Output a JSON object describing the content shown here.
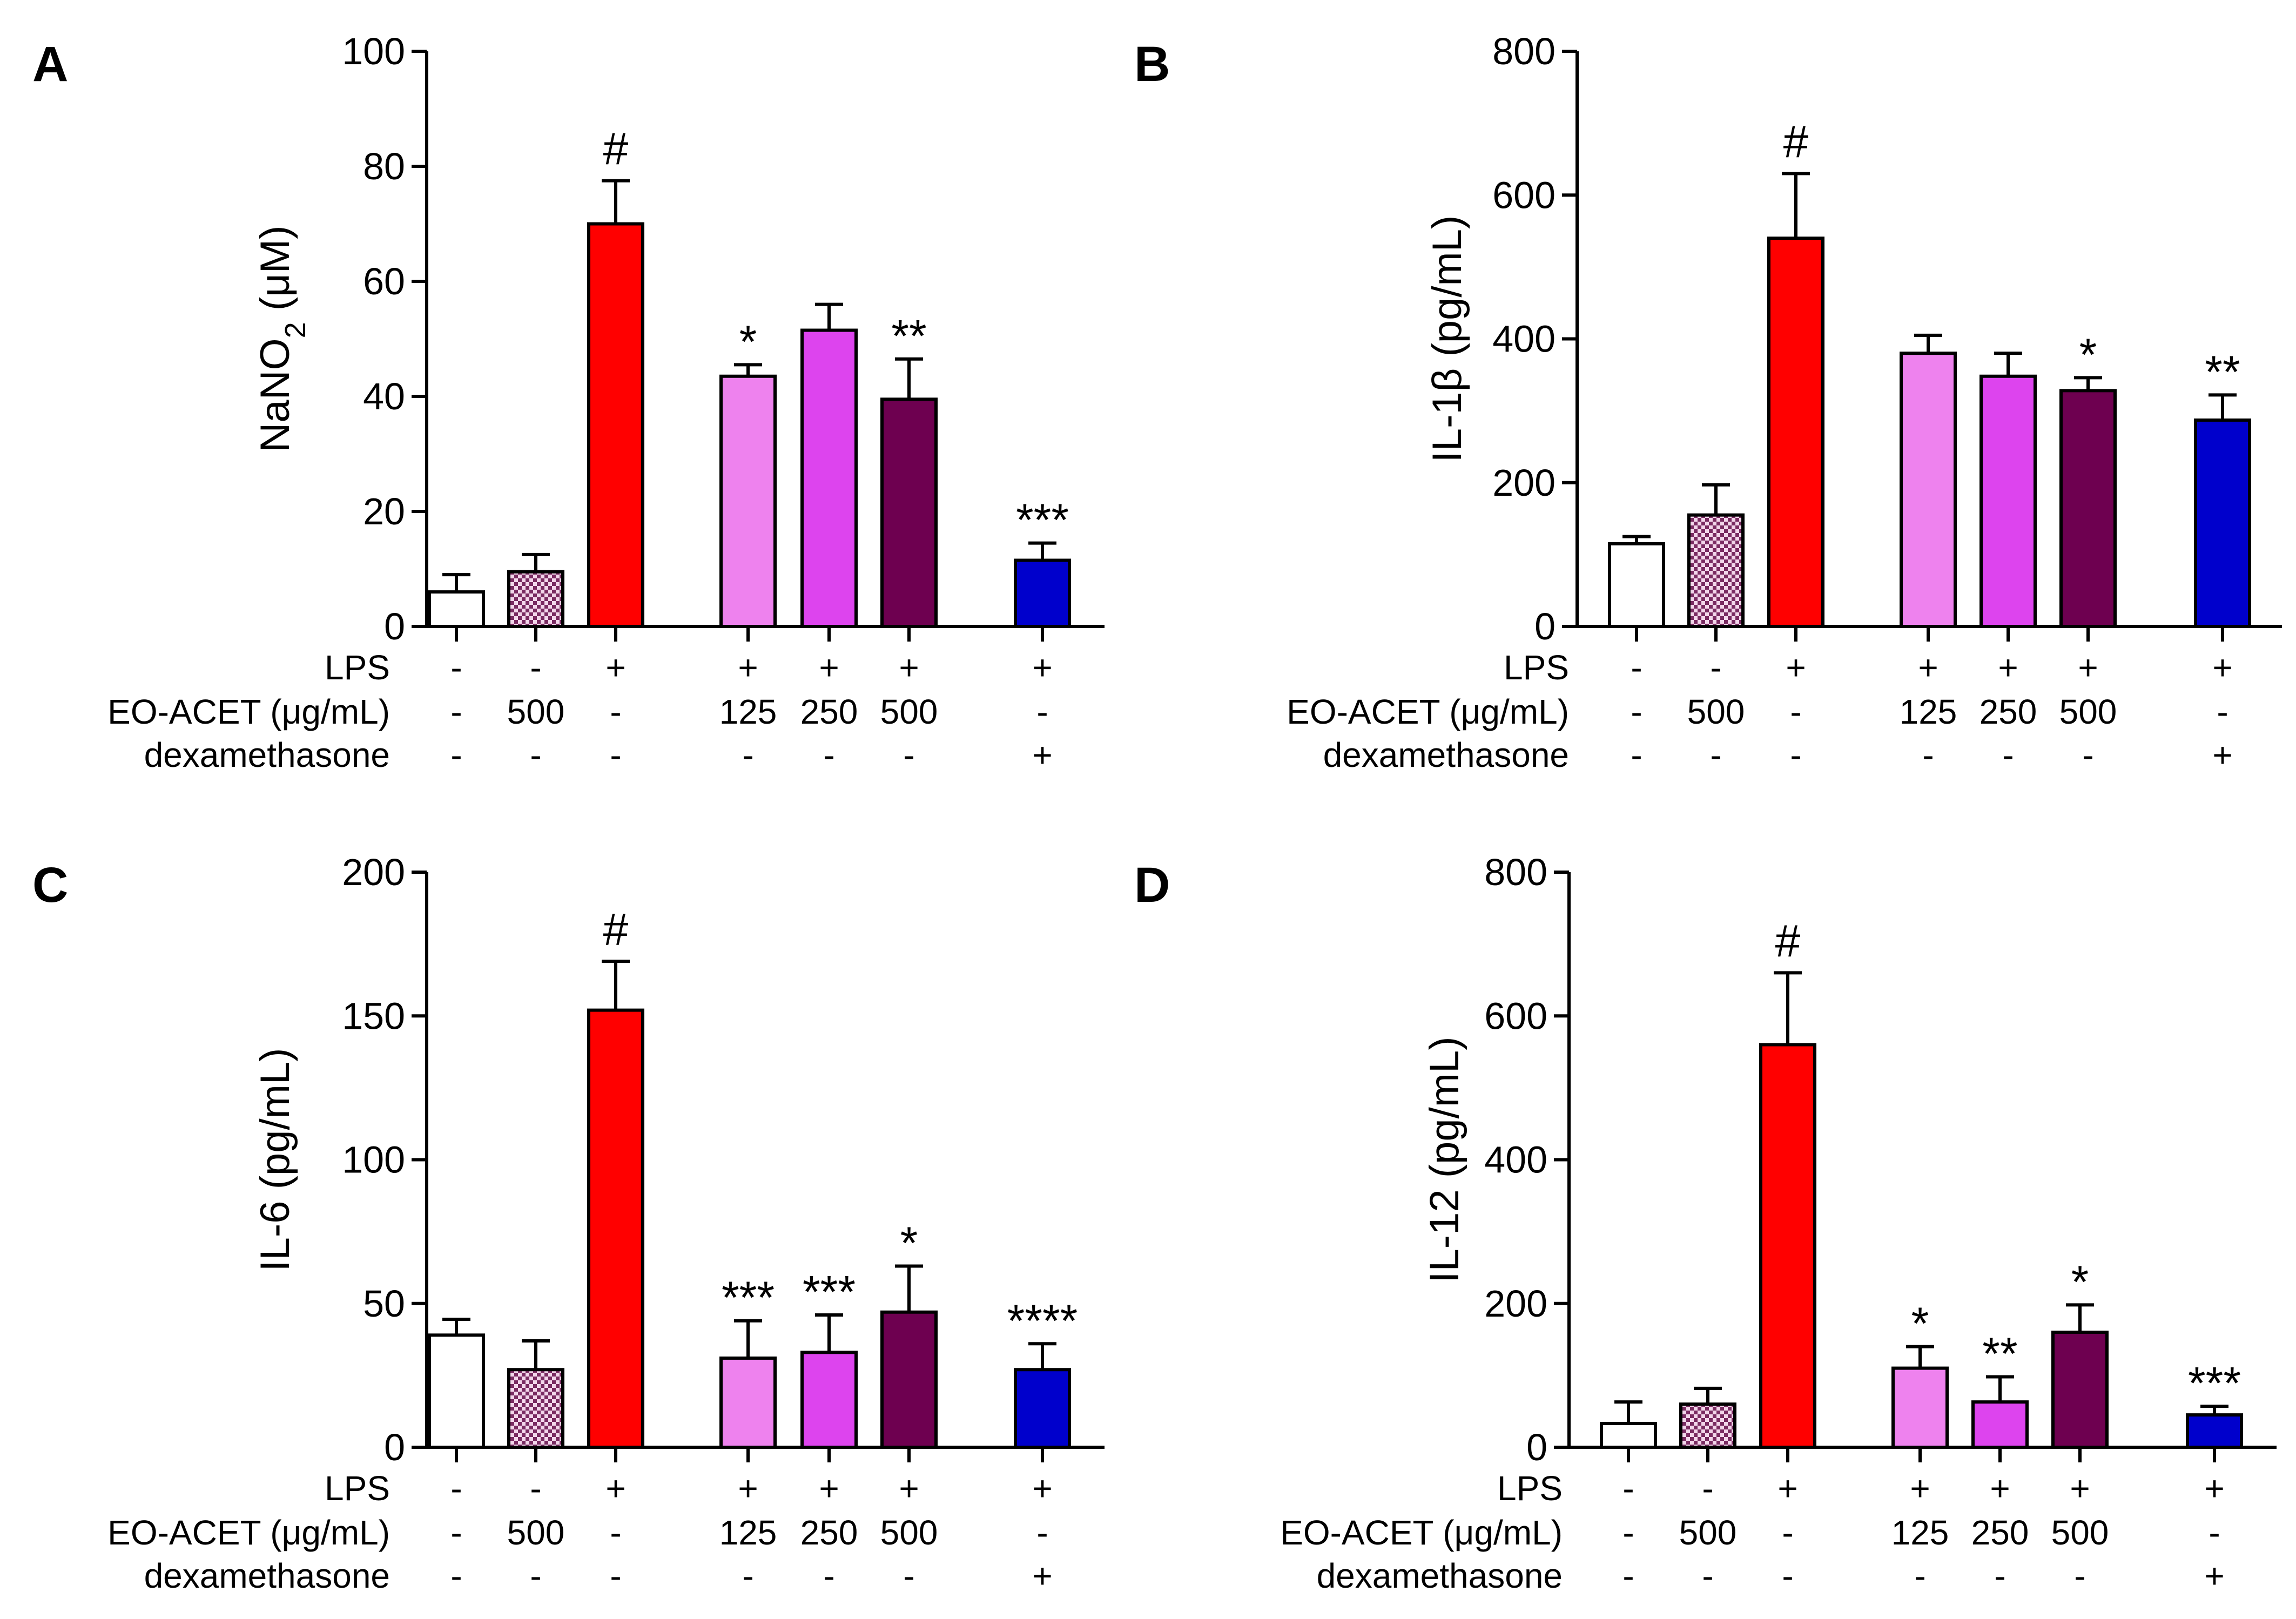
{
  "figure": {
    "panels": [
      {
        "letter": "A",
        "ylabel_main": "NaNO",
        "ylabel_sub": "2",
        "ylabel_tail": " (μM)"
      },
      {
        "letter": "B",
        "ylabel_main": "IL-1β (pg/mL)",
        "ylabel_sub": "",
        "ylabel_tail": ""
      },
      {
        "letter": "C",
        "ylabel_main": "IL-6 (pg/mL)",
        "ylabel_sub": "",
        "ylabel_tail": ""
      },
      {
        "letter": "D",
        "ylabel_main": "IL-12 (pg/mL)",
        "ylabel_sub": "",
        "ylabel_tail": ""
      }
    ],
    "conditions": {
      "row_labels": [
        "LPS",
        "EO-ACET (μg/mL)",
        "dexamethasone"
      ],
      "rows": [
        [
          "-",
          "-",
          "+",
          "+",
          "+",
          "+",
          "+"
        ],
        [
          "-",
          "500",
          "-",
          "125",
          "250",
          "500",
          "-"
        ],
        [
          "-",
          "-",
          "-",
          "-",
          "-",
          "-",
          "+"
        ]
      ]
    }
  },
  "chart_data": [
    {
      "type": "bar",
      "title": "A",
      "ylabel": "NaNO2 (μM)",
      "ylim": [
        0,
        100
      ],
      "yticks": [
        0,
        20,
        40,
        60,
        80,
        100
      ],
      "values": [
        6,
        9.5,
        70,
        43.5,
        51.5,
        39.5,
        11.5
      ],
      "errors": [
        3,
        3,
        7.5,
        2,
        4.5,
        7,
        3
      ],
      "significance": [
        "",
        "",
        "#",
        "*",
        "",
        "**",
        "***"
      ],
      "bar_colors": [
        "#ffffff",
        "pattern",
        "#ff0000",
        "#ee82ee",
        "#dd44ee",
        "#6e0050",
        "#0000cc"
      ]
    },
    {
      "type": "bar",
      "title": "B",
      "ylabel": "IL-1β (pg/mL)",
      "ylim": [
        0,
        800
      ],
      "yticks": [
        0,
        200,
        400,
        600,
        800
      ],
      "values": [
        115,
        155,
        540,
        380,
        348,
        328,
        287
      ],
      "errors": [
        10,
        42,
        90,
        25,
        32,
        18,
        35
      ],
      "significance": [
        "",
        "",
        "#",
        "",
        "",
        "*",
        "**"
      ],
      "bar_colors": [
        "#ffffff",
        "pattern",
        "#ff0000",
        "#ee82ee",
        "#dd44ee",
        "#6e0050",
        "#0000cc"
      ]
    },
    {
      "type": "bar",
      "title": "C",
      "ylabel": "IL-6 (pg/mL)",
      "ylim": [
        0,
        200
      ],
      "yticks": [
        0,
        50,
        100,
        150,
        200
      ],
      "values": [
        39,
        27,
        152,
        31,
        33,
        47,
        27
      ],
      "errors": [
        5.5,
        10,
        17,
        13,
        13,
        16,
        9
      ],
      "significance": [
        "",
        "",
        "#",
        "***",
        "***",
        "*",
        "****"
      ],
      "bar_colors": [
        "#ffffff",
        "pattern",
        "#ff0000",
        "#ee82ee",
        "#dd44ee",
        "#6e0050",
        "#0000cc"
      ]
    },
    {
      "type": "bar",
      "title": "D",
      "ylabel": "IL-12 (pg/mL)",
      "ylim": [
        0,
        800
      ],
      "yticks": [
        0,
        200,
        400,
        600,
        800
      ],
      "values": [
        33,
        60,
        560,
        110,
        63,
        160,
        45
      ],
      "errors": [
        30,
        22,
        100,
        30,
        35,
        38,
        12
      ],
      "significance": [
        "",
        "",
        "#",
        "*",
        "**",
        "*",
        "***"
      ],
      "bar_colors": [
        "#ffffff",
        "pattern",
        "#ff0000",
        "#ee82ee",
        "#dd44ee",
        "#6e0050",
        "#0000cc"
      ]
    }
  ]
}
